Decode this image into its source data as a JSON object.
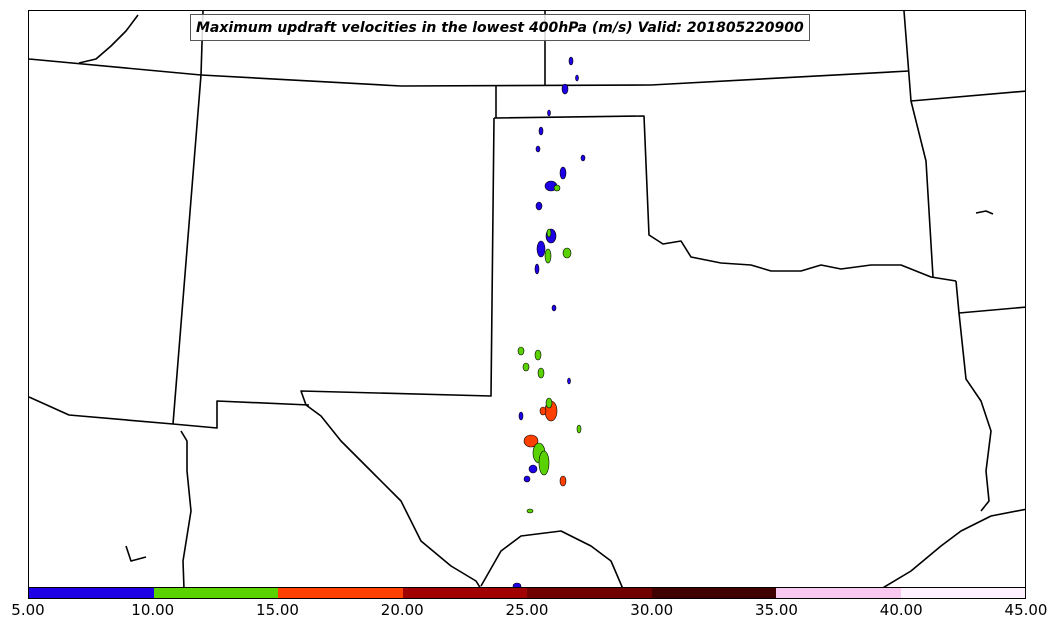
{
  "title": "Maximum updraft velocities in the lowest 400hPa (m/s) Valid: 201805220900",
  "colorbar": {
    "ticks": [
      "5.00",
      "10.00",
      "15.00",
      "20.00",
      "25.00",
      "30.00",
      "35.00",
      "40.00",
      "45.00"
    ],
    "colors": [
      "#1e00e6",
      "#5ad200",
      "#ff4000",
      "#a00000",
      "#700000",
      "#400000",
      "#f8c8f0",
      "#fff0ff"
    ]
  },
  "map": {
    "region": "Southern Plains, USA",
    "features": [
      "state-boundaries",
      "coastline",
      "updraft-contours"
    ]
  }
}
